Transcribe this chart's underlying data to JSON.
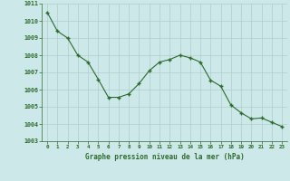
{
  "x": [
    0,
    1,
    2,
    3,
    4,
    5,
    6,
    7,
    8,
    9,
    10,
    11,
    12,
    13,
    14,
    15,
    16,
    17,
    18,
    19,
    20,
    21,
    22,
    23
  ],
  "y": [
    1010.5,
    1009.4,
    1009.0,
    1008.0,
    1007.6,
    1006.6,
    1005.55,
    1005.55,
    1005.75,
    1006.35,
    1007.1,
    1007.6,
    1007.75,
    1008.0,
    1007.85,
    1007.6,
    1006.55,
    1006.2,
    1005.1,
    1004.65,
    1004.3,
    1004.35,
    1004.1,
    1003.85
  ],
  "line_color": "#2d6a2d",
  "marker_color": "#2d6a2d",
  "bg_color": "#cce8e8",
  "plot_bg_color": "#cce8e8",
  "grid_color": "#b0cccc",
  "xlabel": "Graphe pression niveau de la mer (hPa)",
  "xlabel_color": "#2d6a2d",
  "tick_label_color": "#2d6a2d",
  "ylim": [
    1003,
    1011
  ],
  "xlim": [
    -0.5,
    23.5
  ],
  "yticks": [
    1003,
    1004,
    1005,
    1006,
    1007,
    1008,
    1009,
    1010,
    1011
  ],
  "xticks": [
    0,
    1,
    2,
    3,
    4,
    5,
    6,
    7,
    8,
    9,
    10,
    11,
    12,
    13,
    14,
    15,
    16,
    17,
    18,
    19,
    20,
    21,
    22,
    23
  ],
  "xtick_labels": [
    "0",
    "1",
    "2",
    "3",
    "4",
    "5",
    "6",
    "7",
    "8",
    "9",
    "10",
    "11",
    "12",
    "13",
    "14",
    "15",
    "16",
    "17",
    "18",
    "19",
    "20",
    "21",
    "22",
    "23"
  ]
}
